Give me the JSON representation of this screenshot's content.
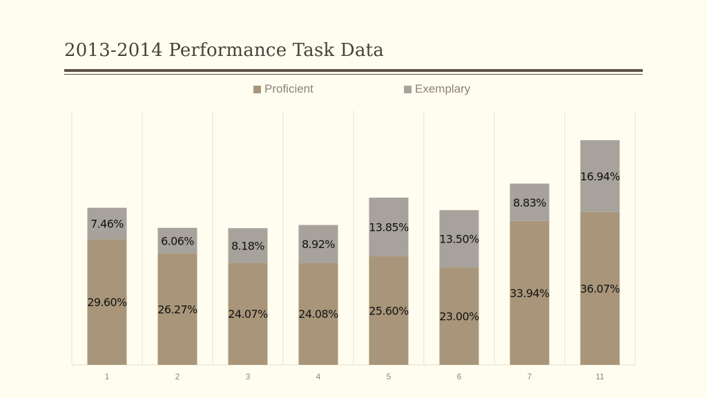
{
  "chart_data": {
    "type": "bar",
    "stacked": true,
    "title": "2013-2014 Performance Task Data",
    "categories": [
      "1",
      "2",
      "3",
      "4",
      "5",
      "6",
      "7",
      "11"
    ],
    "series": [
      {
        "name": "Proficient",
        "color": "#a9967a",
        "values": [
          29.6,
          26.27,
          24.07,
          24.08,
          25.6,
          23.0,
          33.94,
          36.07
        ],
        "labels": [
          "29.60%",
          "26.27%",
          "24.07%",
          "24.08%",
          "25.60%",
          "23.00%",
          "33.94%",
          "36.07%"
        ]
      },
      {
        "name": "Exemplary",
        "color": "#a7a29b",
        "values": [
          7.46,
          6.06,
          8.18,
          8.92,
          13.85,
          13.5,
          8.83,
          16.94
        ],
        "labels": [
          "7.46%",
          "6.06%",
          "8.18%",
          "8.92%",
          "13.85%",
          "13.50%",
          "8.83%",
          "16.94%"
        ]
      }
    ],
    "ylim": [
      0,
      60
    ],
    "grid": "vertical",
    "legend": "top-center"
  }
}
